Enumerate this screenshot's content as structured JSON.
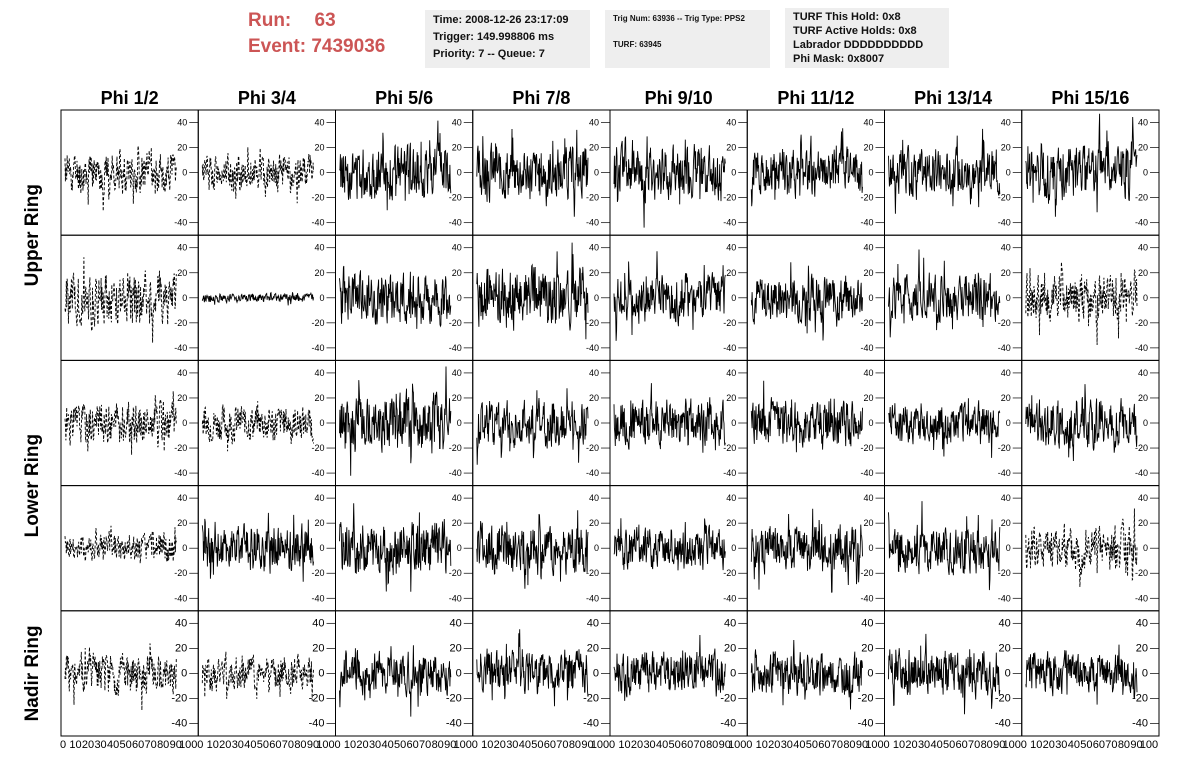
{
  "header": {
    "run_label": "Run:",
    "run_value": "63",
    "event_label": "Event:",
    "event_value": "7439036",
    "time_line": "Time: 2008-12-26 23:17:09",
    "trigger_line": "Trigger: 149.998806 ms",
    "priority_line": "Priority: 7 -- Queue: 7",
    "trig_line": "Trig Num: 63936 -- Trig Type: PPS2",
    "turf_line": "TURF: 63945",
    "turf_hold_line": "TURF This Hold: 0x8",
    "turf_active_line": "TURF Active Holds: 0x8",
    "labrador_line": "Labrador DDDDDDDDDD",
    "phi_mask_line": "Phi Mask: 0x8007"
  },
  "columns": [
    "Phi 1/2",
    "Phi 3/4",
    "Phi 5/6",
    "Phi 7/8",
    "Phi 9/10",
    "Phi 11/12",
    "Phi 13/14",
    "Phi 15/16"
  ],
  "rows": [
    "Upper Ring",
    "Lower Ring",
    "Nadir Ring"
  ],
  "y_ticks": [
    "40",
    "20",
    "0",
    "-20",
    "-40"
  ],
  "x_ticks": [
    "0",
    "10",
    "20",
    "30",
    "40",
    "50",
    "60",
    "70",
    "80",
    "90",
    "100"
  ],
  "colors": {
    "title": "#cc5555",
    "info_bg": "#eeeeee",
    "trace": "#000000"
  },
  "chart_data": {
    "type": "line",
    "title": "",
    "xlabel": "",
    "ylabel": "",
    "xlim": [
      0,
      100
    ],
    "ylim": [
      -50,
      50
    ],
    "grid": false,
    "panel_rows": 5,
    "panel_cols": 8,
    "panels": [
      {
        "row": 0,
        "col": 0,
        "style": "dashed",
        "amp": 14,
        "seed": 11
      },
      {
        "row": 0,
        "col": 1,
        "style": "dashed",
        "amp": 12,
        "seed": 12
      },
      {
        "row": 0,
        "col": 2,
        "style": "solid",
        "amp": 18,
        "seed": 13
      },
      {
        "row": 0,
        "col": 3,
        "style": "solid",
        "amp": 18,
        "seed": 14
      },
      {
        "row": 0,
        "col": 4,
        "style": "solid",
        "amp": 18,
        "seed": 15
      },
      {
        "row": 0,
        "col": 5,
        "style": "solid",
        "amp": 16,
        "seed": 16
      },
      {
        "row": 0,
        "col": 6,
        "style": "solid",
        "amp": 16,
        "seed": 17
      },
      {
        "row": 0,
        "col": 7,
        "style": "solid",
        "amp": 18,
        "seed": 18
      },
      {
        "row": 1,
        "col": 0,
        "style": "dashed",
        "amp": 18,
        "seed": 21
      },
      {
        "row": 1,
        "col": 1,
        "style": "solid",
        "amp": 3,
        "seed": 22
      },
      {
        "row": 1,
        "col": 2,
        "style": "solid",
        "amp": 18,
        "seed": 23
      },
      {
        "row": 1,
        "col": 3,
        "style": "solid",
        "amp": 20,
        "seed": 24
      },
      {
        "row": 1,
        "col": 4,
        "style": "solid",
        "amp": 16,
        "seed": 25
      },
      {
        "row": 1,
        "col": 5,
        "style": "solid",
        "amp": 16,
        "seed": 26
      },
      {
        "row": 1,
        "col": 6,
        "style": "solid",
        "amp": 16,
        "seed": 27
      },
      {
        "row": 1,
        "col": 7,
        "style": "dashed",
        "amp": 16,
        "seed": 28
      },
      {
        "row": 2,
        "col": 0,
        "style": "dashed",
        "amp": 14,
        "seed": 31
      },
      {
        "row": 2,
        "col": 1,
        "style": "dashed",
        "amp": 12,
        "seed": 32
      },
      {
        "row": 2,
        "col": 2,
        "style": "solid",
        "amp": 20,
        "seed": 33
      },
      {
        "row": 2,
        "col": 3,
        "style": "solid",
        "amp": 16,
        "seed": 34
      },
      {
        "row": 2,
        "col": 4,
        "style": "solid",
        "amp": 16,
        "seed": 35
      },
      {
        "row": 2,
        "col": 5,
        "style": "solid",
        "amp": 16,
        "seed": 36
      },
      {
        "row": 2,
        "col": 6,
        "style": "solid",
        "amp": 14,
        "seed": 37
      },
      {
        "row": 2,
        "col": 7,
        "style": "solid",
        "amp": 16,
        "seed": 38
      },
      {
        "row": 3,
        "col": 0,
        "style": "dashed",
        "amp": 10,
        "seed": 41
      },
      {
        "row": 3,
        "col": 1,
        "style": "solid",
        "amp": 16,
        "seed": 42
      },
      {
        "row": 3,
        "col": 2,
        "style": "solid",
        "amp": 18,
        "seed": 43
      },
      {
        "row": 3,
        "col": 3,
        "style": "solid",
        "amp": 18,
        "seed": 44
      },
      {
        "row": 3,
        "col": 4,
        "style": "solid",
        "amp": 14,
        "seed": 45
      },
      {
        "row": 3,
        "col": 5,
        "style": "solid",
        "amp": 16,
        "seed": 46
      },
      {
        "row": 3,
        "col": 6,
        "style": "solid",
        "amp": 16,
        "seed": 47
      },
      {
        "row": 3,
        "col": 7,
        "style": "dashed",
        "amp": 16,
        "seed": 48
      },
      {
        "row": 4,
        "col": 0,
        "style": "dashed",
        "amp": 14,
        "seed": 51
      },
      {
        "row": 4,
        "col": 1,
        "style": "dashed",
        "amp": 12,
        "seed": 52
      },
      {
        "row": 4,
        "col": 2,
        "style": "solid",
        "amp": 14,
        "seed": 53
      },
      {
        "row": 4,
        "col": 3,
        "style": "solid",
        "amp": 16,
        "seed": 54
      },
      {
        "row": 4,
        "col": 4,
        "style": "solid",
        "amp": 14,
        "seed": 55
      },
      {
        "row": 4,
        "col": 5,
        "style": "solid",
        "amp": 14,
        "seed": 56
      },
      {
        "row": 4,
        "col": 6,
        "style": "solid",
        "amp": 16,
        "seed": 57
      },
      {
        "row": 4,
        "col": 7,
        "style": "solid",
        "amp": 14,
        "seed": 58
      }
    ]
  }
}
